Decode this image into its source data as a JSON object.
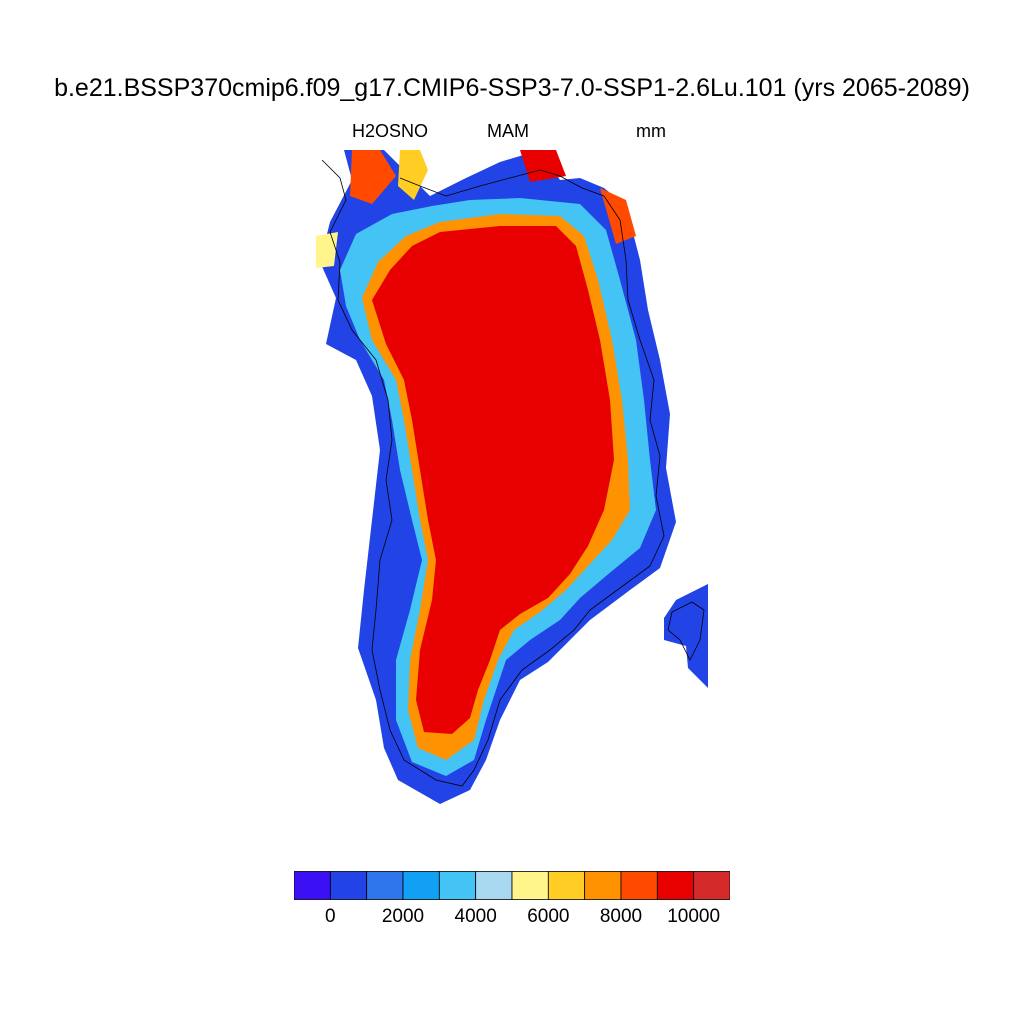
{
  "title": "b.e21.BSSP370cmip6.f09_g17.CMIP6-SSP3-7.0-SSP1-2.6Lu.101 (yrs 2065-2089)",
  "subtitle_left": "H2OSNO",
  "subtitle_center": "MAM",
  "subtitle_right": "mm",
  "colorbar": {
    "colors": [
      "#3c10f5",
      "#2244e6",
      "#2f75eb",
      "#12a0f5",
      "#44c4f4",
      "#a8d8ef",
      "#fff58a",
      "#ffcd24",
      "#ff9200",
      "#ff4a00",
      "#e80000",
      "#d42a2a"
    ],
    "tick_labels": [
      "0",
      "2000",
      "4000",
      "6000",
      "8000",
      "10000"
    ]
  }
}
